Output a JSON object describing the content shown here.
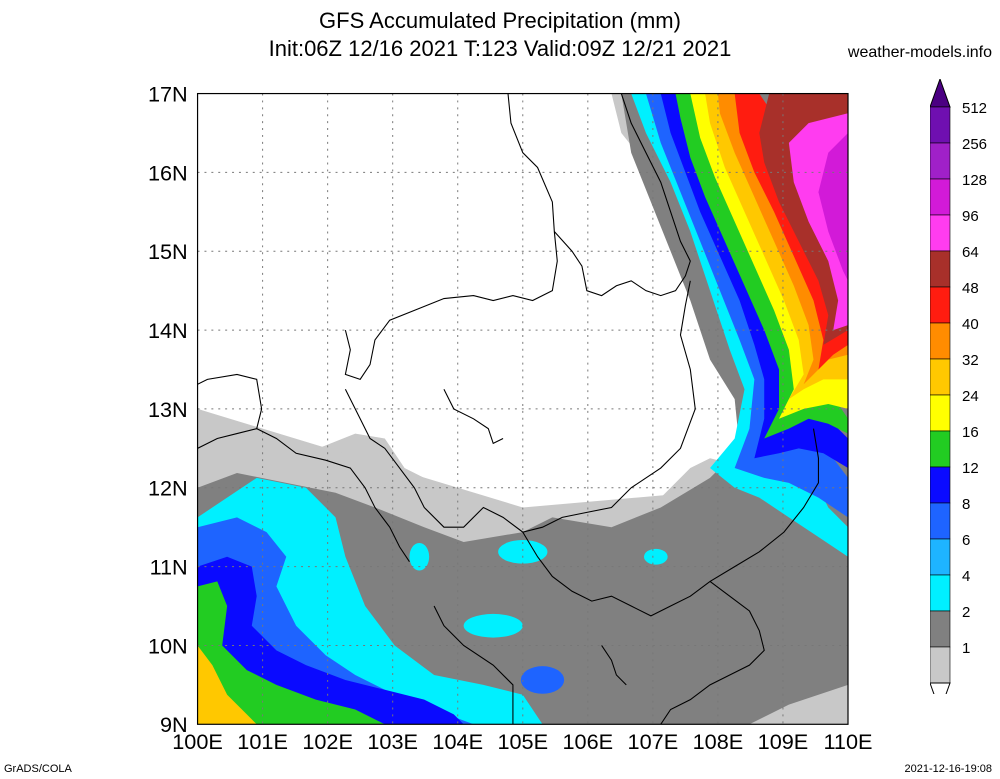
{
  "header": {
    "title_line1": "GFS Accumulated Precipitation (mm)",
    "title_line2": "Init:06Z 12/16 2021 T:123 Valid:09Z 12/21 2021",
    "site": "weather-models.info"
  },
  "map": {
    "lat_labels": [
      "17N",
      "16N",
      "15N",
      "14N",
      "13N",
      "12N",
      "11N",
      "10N",
      "9N"
    ],
    "lon_labels": [
      "100E",
      "101E",
      "102E",
      "103E",
      "104E",
      "105E",
      "106E",
      "107E",
      "108E",
      "109E",
      "110E"
    ]
  },
  "legend": {
    "levels": [
      {
        "label": "512",
        "color": "#6f0fb0"
      },
      {
        "label": "256",
        "color": "#a020c8"
      },
      {
        "label": "128",
        "color": "#d21ad8"
      },
      {
        "label": "96",
        "color": "#ff3cf0"
      },
      {
        "label": "64",
        "color": "#a8302a"
      },
      {
        "label": "48",
        "color": "#ff1c10"
      },
      {
        "label": "40",
        "color": "#ff8c00"
      },
      {
        "label": "32",
        "color": "#ffc800"
      },
      {
        "label": "24",
        "color": "#ffff00"
      },
      {
        "label": "16",
        "color": "#22cc22"
      },
      {
        "label": "12",
        "color": "#0a0aff"
      },
      {
        "label": "8",
        "color": "#1e64ff"
      },
      {
        "label": "6",
        "color": "#1eb4ff"
      },
      {
        "label": "4",
        "color": "#00f0ff"
      },
      {
        "label": "2",
        "color": "#808080"
      },
      {
        "label": "1",
        "color": "#c8c8c8"
      }
    ]
  },
  "footer": {
    "left": "GrADS/COLA",
    "right": "2021-12-16-19:08"
  }
}
